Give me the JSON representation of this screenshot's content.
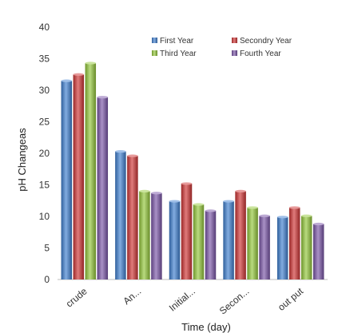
{
  "chart_data": {
    "type": "bar",
    "categories": [
      "crude",
      "An...",
      "Initial...",
      "Secon...",
      "out put"
    ],
    "series": [
      {
        "name": "First Year",
        "values": [
          31.5,
          20.3,
          12.4,
          12.4,
          9.9
        ]
      },
      {
        "name": "Secondry Year",
        "values": [
          32.5,
          19.6,
          15.2,
          14.0,
          11.4
        ]
      },
      {
        "name": "Third Year",
        "values": [
          34.3,
          14.0,
          11.9,
          11.4,
          10.1
        ]
      },
      {
        "name": "Fourth Year",
        "values": [
          28.9,
          13.7,
          10.9,
          10.1,
          8.8
        ]
      }
    ],
    "title": "",
    "xlabel": "Time  (day)",
    "ylabel": "pH Changeas",
    "ylim": [
      0,
      40
    ],
    "yticks": [
      0,
      5,
      10,
      15,
      20,
      25,
      30,
      35,
      40
    ],
    "grid": false,
    "legend_position": "top-right",
    "colors": {
      "First Year": "#3f7fd0",
      "Secondry Year": "#cf3434",
      "Third Year": "#94c83a",
      "Fourth Year": "#7a55a8"
    }
  }
}
